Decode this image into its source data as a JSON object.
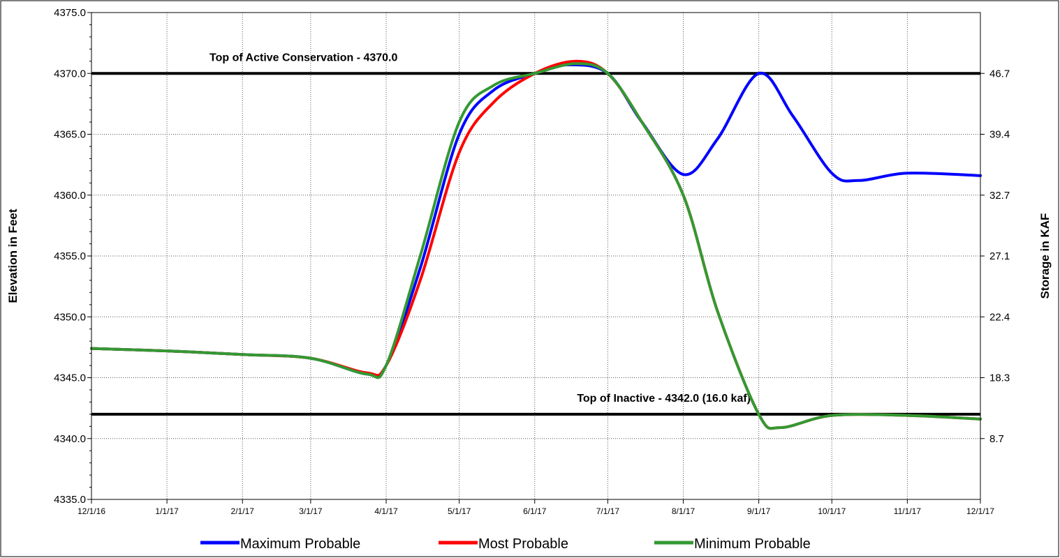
{
  "chart_data": {
    "type": "line",
    "xlabel": "",
    "ylabel": "Elevation in Feet",
    "y2label": "Storage in KAF",
    "ylim": [
      4335.0,
      4375.0
    ],
    "yticks": [
      "4335.0",
      "4340.0",
      "4345.0",
      "4350.0",
      "4355.0",
      "4360.0",
      "4365.0",
      "4370.0",
      "4375.0"
    ],
    "y2ticks": [
      {
        "elevation": 4340.0,
        "label": "8.7"
      },
      {
        "elevation": 4345.0,
        "label": "18.3"
      },
      {
        "elevation": 4350.0,
        "label": "22.4"
      },
      {
        "elevation": 4355.0,
        "label": "27.1"
      },
      {
        "elevation": 4360.0,
        "label": "32.7"
      },
      {
        "elevation": 4365.0,
        "label": "39.4"
      },
      {
        "elevation": 4370.0,
        "label": "46.7"
      }
    ],
    "x_dates": [
      "12/1/16",
      "1/1/17",
      "2/1/17",
      "3/1/17",
      "4/1/17",
      "5/1/17",
      "6/1/17",
      "7/1/17",
      "8/1/17",
      "9/1/17",
      "10/1/17",
      "11/1/17",
      "12/1/17"
    ],
    "grid": true,
    "legend_position": "bottom",
    "reference_lines": [
      {
        "y": 4370.0,
        "label": "Top of Active Conservation - 4370.0",
        "color": "#000000"
      },
      {
        "y": 4342.0,
        "label": "Top of Inactive  - 4342.0 (16.0 kaf)",
        "color": "#000000"
      }
    ],
    "series": [
      {
        "name": "Maximum Probable",
        "color": "#0000FF",
        "points": [
          [
            "12/1/16",
            4347.4
          ],
          [
            "1/1/17",
            4347.2
          ],
          [
            "2/1/17",
            4346.9
          ],
          [
            "3/1/17",
            4346.6
          ],
          [
            "3/24/17",
            4345.3
          ],
          [
            "4/1/17",
            4346.0
          ],
          [
            "4/15/17",
            4354.0
          ],
          [
            "5/1/17",
            4365.0
          ],
          [
            "5/15/17",
            4368.6
          ],
          [
            "6/1/17",
            4370.0
          ],
          [
            "6/15/17",
            4370.7
          ],
          [
            "7/1/17",
            4370.0
          ],
          [
            "7/15/17",
            4366.0
          ],
          [
            "8/1/17",
            4361.7
          ],
          [
            "8/15/17",
            4364.6
          ],
          [
            "9/1/17",
            4370.0
          ],
          [
            "9/15/17",
            4366.5
          ],
          [
            "10/1/17",
            4361.8
          ],
          [
            "10/12/17",
            4361.2
          ],
          [
            "11/1/17",
            4361.8
          ],
          [
            "12/1/17",
            4361.6
          ]
        ]
      },
      {
        "name": "Most Probable",
        "color": "#FF0000",
        "points": [
          [
            "12/1/16",
            4347.4
          ],
          [
            "1/1/17",
            4347.2
          ],
          [
            "2/1/17",
            4346.9
          ],
          [
            "3/1/17",
            4346.6
          ],
          [
            "3/24/17",
            4345.4
          ],
          [
            "4/1/17",
            4346.0
          ],
          [
            "4/15/17",
            4353.0
          ],
          [
            "5/1/17",
            4363.5
          ],
          [
            "5/15/17",
            4367.6
          ],
          [
            "6/1/17",
            4370.0
          ],
          [
            "6/18/17",
            4371.0
          ],
          [
            "7/1/17",
            4370.0
          ],
          [
            "7/15/17",
            4366.0
          ],
          [
            "8/1/17",
            4360.0
          ],
          [
            "8/15/17",
            4350.5
          ],
          [
            "9/1/17",
            4342.0
          ],
          [
            "9/10/17",
            4340.9
          ],
          [
            "10/1/17",
            4341.9
          ],
          [
            "11/1/17",
            4341.9
          ],
          [
            "12/1/17",
            4341.6
          ]
        ]
      },
      {
        "name": "Minimum Probable",
        "color": "#339933",
        "points": [
          [
            "12/1/16",
            4347.4
          ],
          [
            "1/1/17",
            4347.2
          ],
          [
            "2/1/17",
            4346.9
          ],
          [
            "3/1/17",
            4346.6
          ],
          [
            "3/24/17",
            4345.3
          ],
          [
            "4/1/17",
            4346.0
          ],
          [
            "4/15/17",
            4355.0
          ],
          [
            "5/1/17",
            4366.0
          ],
          [
            "5/15/17",
            4369.0
          ],
          [
            "6/1/17",
            4370.0
          ],
          [
            "6/18/17",
            4370.8
          ],
          [
            "7/1/17",
            4370.0
          ],
          [
            "7/15/17",
            4366.0
          ],
          [
            "8/1/17",
            4360.0
          ],
          [
            "8/15/17",
            4350.5
          ],
          [
            "9/1/17",
            4342.0
          ],
          [
            "9/10/17",
            4340.9
          ],
          [
            "10/1/17",
            4341.9
          ],
          [
            "11/1/17",
            4341.9
          ],
          [
            "12/1/17",
            4341.6
          ]
        ]
      }
    ]
  }
}
